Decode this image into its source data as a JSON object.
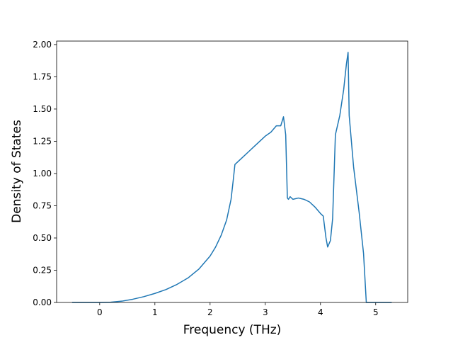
{
  "chart_data": {
    "type": "line",
    "xlabel": "Frequency (THz)",
    "ylabel": "Density of States",
    "x": [
      -0.5,
      0,
      0.2,
      0.4,
      0.6,
      0.8,
      1.0,
      1.2,
      1.4,
      1.6,
      1.8,
      2.0,
      2.1,
      2.2,
      2.3,
      2.38,
      2.42,
      2.45,
      2.5,
      2.6,
      2.7,
      2.8,
      2.9,
      3.0,
      3.1,
      3.2,
      3.28,
      3.33,
      3.37,
      3.4,
      3.42,
      3.45,
      3.5,
      3.6,
      3.7,
      3.8,
      3.9,
      4.0,
      4.05,
      4.1,
      4.13,
      4.18,
      4.22,
      4.27,
      4.35,
      4.42,
      4.47,
      4.5,
      4.52,
      4.6,
      4.7,
      4.78,
      4.83,
      4.9,
      5.29
    ],
    "series": [
      {
        "color": "#1f77b4",
        "values": [
          0,
          0,
          0.002,
          0.01,
          0.025,
          0.045,
          0.07,
          0.1,
          0.14,
          0.19,
          0.26,
          0.36,
          0.43,
          0.52,
          0.64,
          0.8,
          0.95,
          1.07,
          1.09,
          1.13,
          1.17,
          1.21,
          1.25,
          1.29,
          1.32,
          1.37,
          1.37,
          1.44,
          1.3,
          0.81,
          0.8,
          0.82,
          0.8,
          0.81,
          0.8,
          0.78,
          0.74,
          0.69,
          0.67,
          0.5,
          0.43,
          0.48,
          0.65,
          1.3,
          1.45,
          1.65,
          1.85,
          1.94,
          1.45,
          1.05,
          0.7,
          0.38,
          0,
          0,
          0
        ]
      }
    ],
    "xlim": [
      -0.78,
      5.58
    ],
    "ylim": [
      0,
      2.027
    ],
    "xticks": [
      0,
      1,
      2,
      3,
      4,
      5
    ],
    "yticks": [
      {
        "value": 0,
        "label": "0.00"
      },
      {
        "value": 0.25,
        "label": "0.25"
      },
      {
        "value": 0.5,
        "label": "0.50"
      },
      {
        "value": 0.75,
        "label": "0.75"
      },
      {
        "value": 1,
        "label": "1.00"
      },
      {
        "value": 1.25,
        "label": "1.25"
      },
      {
        "value": 1.5,
        "label": "1.50"
      },
      {
        "value": 1.75,
        "label": "1.75"
      },
      {
        "value": 2,
        "label": "2.00"
      }
    ]
  }
}
